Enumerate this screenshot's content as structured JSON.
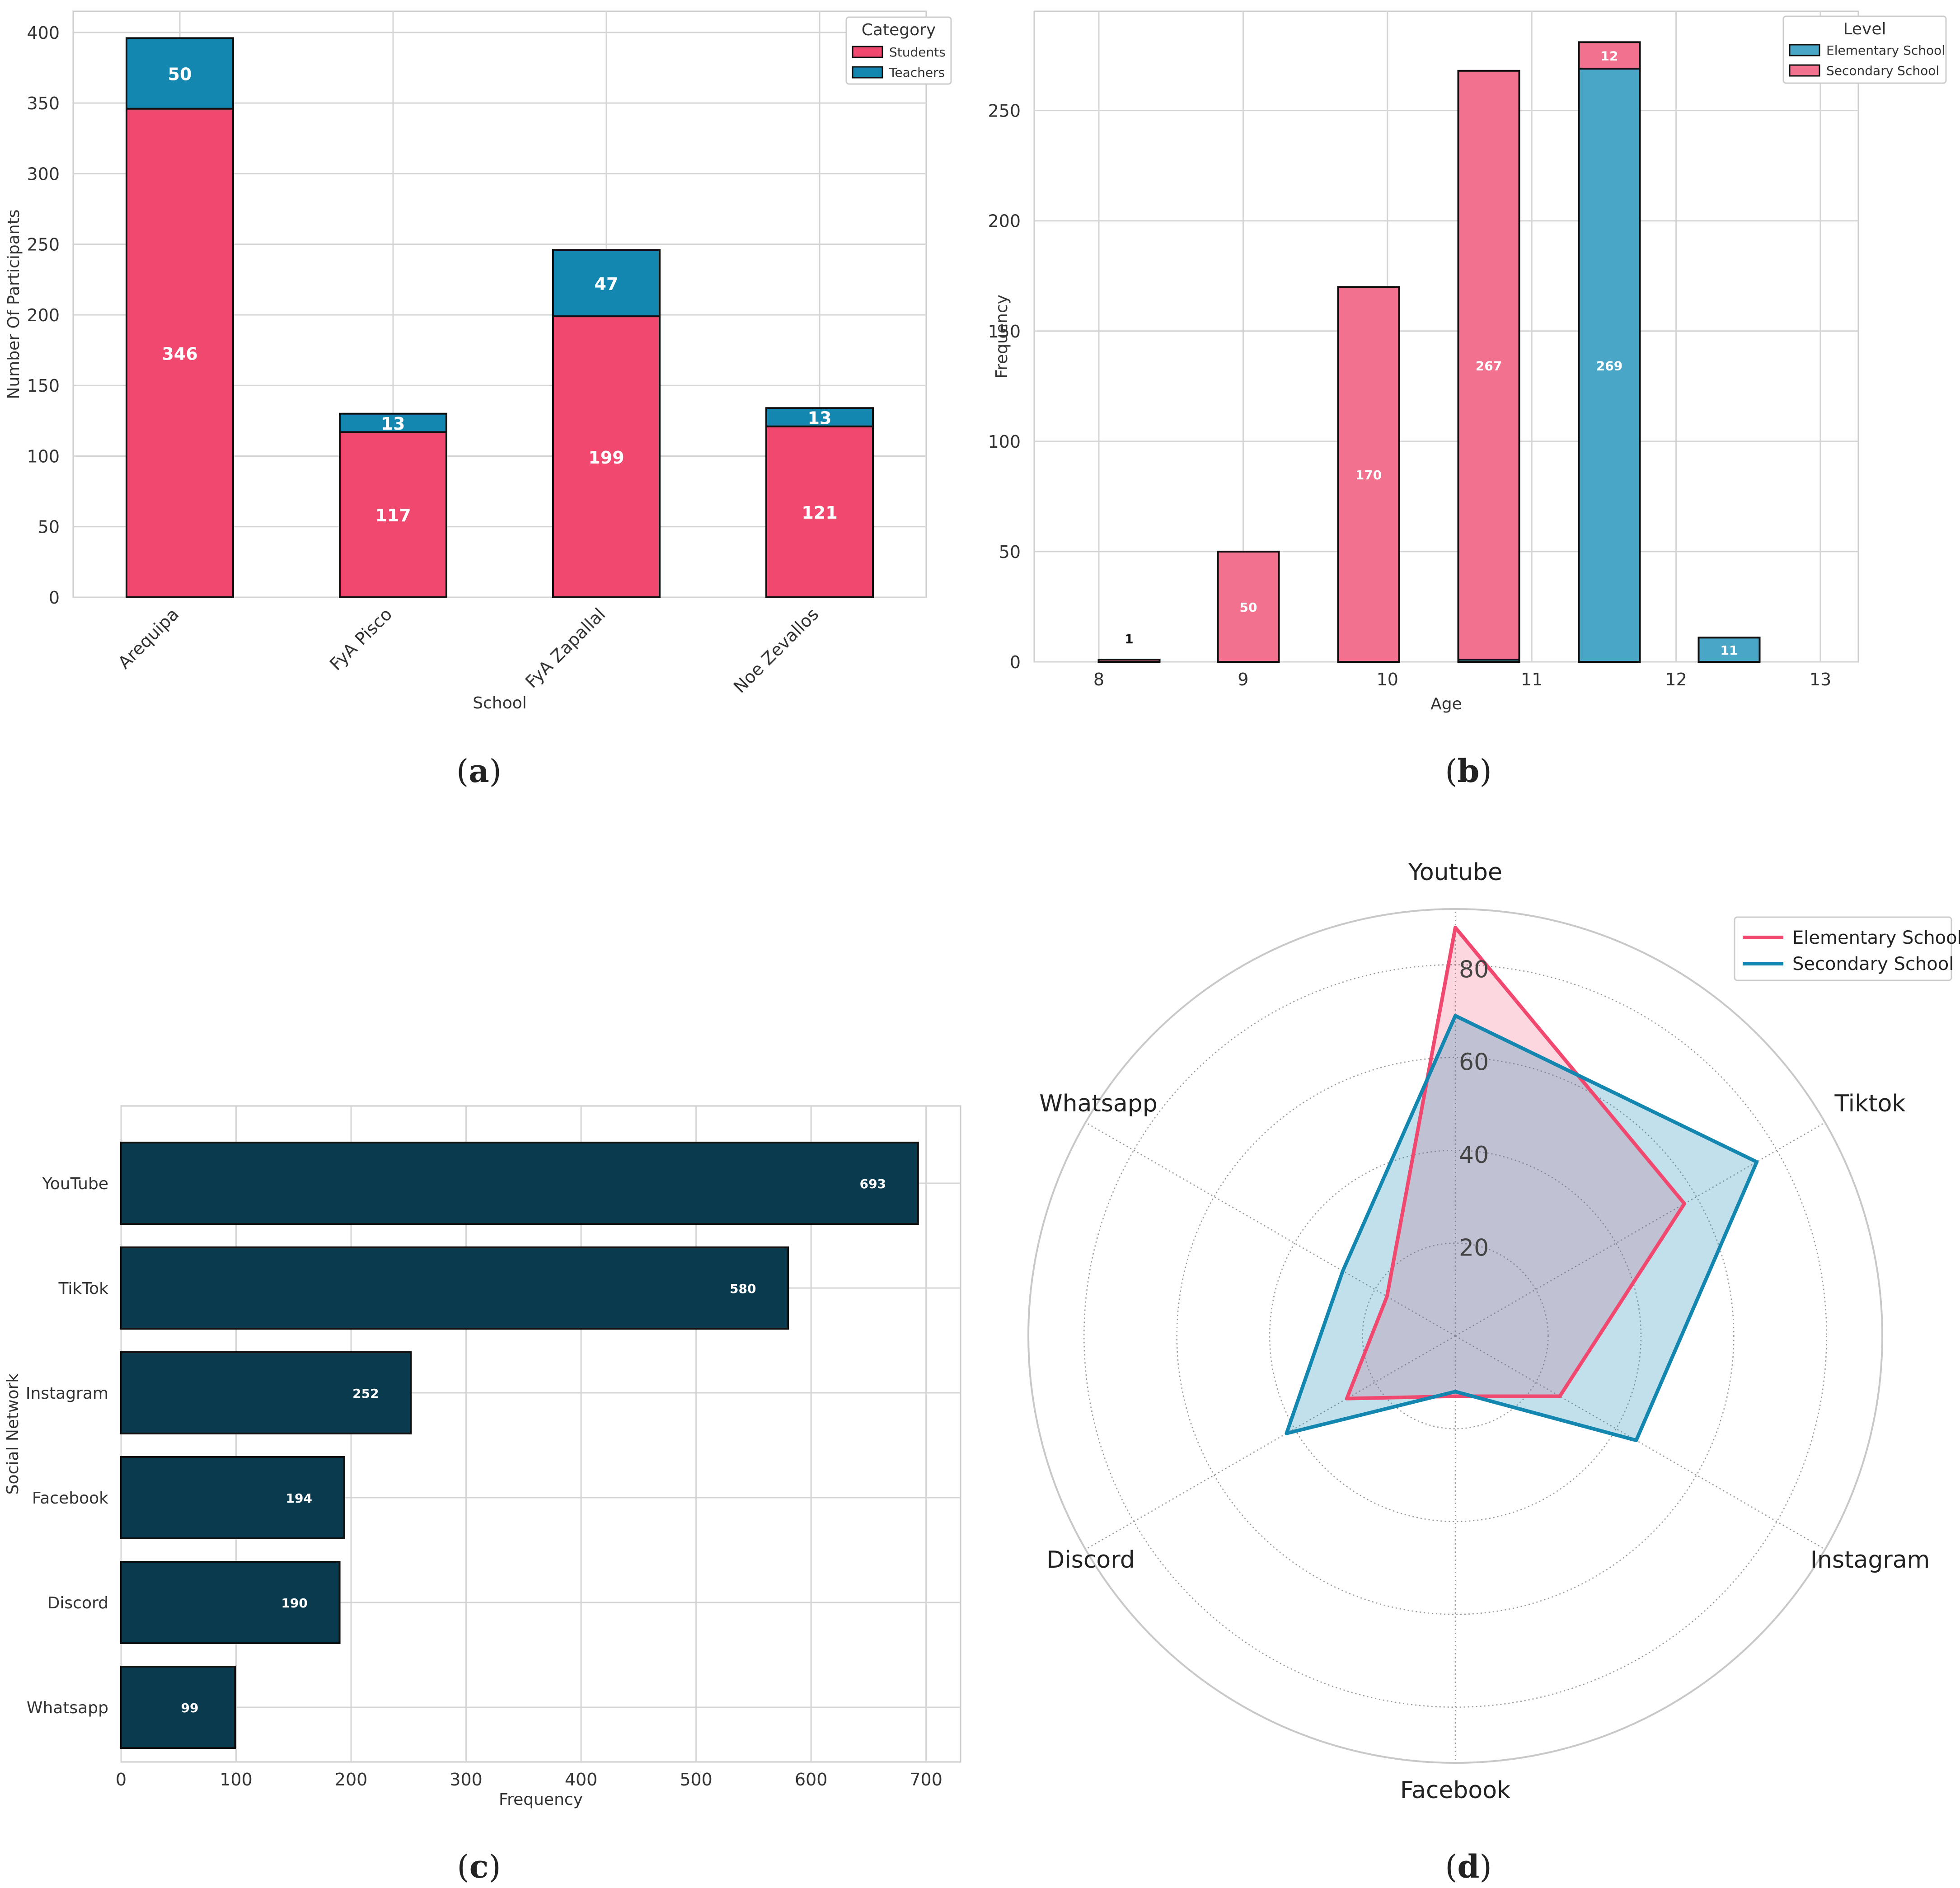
{
  "captions": {
    "a": {
      "open": "(",
      "letter": "a",
      "close": ")"
    },
    "b": {
      "open": "(",
      "letter": "b",
      "close": ")"
    },
    "c": {
      "open": "(",
      "letter": "c",
      "close": ")"
    },
    "d": {
      "open": "(",
      "letter": "d",
      "close": ")"
    }
  },
  "colors": {
    "pink": "#f0486f",
    "blue": "#1387b0",
    "pink_hist": "#f2718f",
    "blue_hist": "#4aa6c7",
    "navy": "#0a3a4e"
  },
  "chart_data": [
    {
      "id": "a",
      "type": "bar",
      "stacked": true,
      "categories": [
        "Arequipa",
        "FyA Pisco",
        "FyA Zapallal",
        "Noe Zevallos"
      ],
      "series": [
        {
          "name": "Students",
          "values": [
            346,
            117,
            199,
            121
          ]
        },
        {
          "name": "Teachers",
          "values": [
            50,
            13,
            47,
            13
          ]
        }
      ],
      "xlabel": "School",
      "ylabel": "Number Of Participants",
      "ylim": [
        0,
        415
      ],
      "yticks": [
        0,
        50,
        100,
        150,
        200,
        250,
        300,
        350,
        400
      ],
      "legend_title": "Category",
      "legend": "top-right",
      "grid": true
    },
    {
      "id": "b",
      "type": "bar",
      "subtype": "histogram",
      "stacked": true,
      "bins": [
        8,
        9,
        10,
        11,
        12,
        13
      ],
      "series": [
        {
          "name": "Elementary School",
          "values": [
            0,
            0,
            0,
            1,
            269,
            11
          ]
        },
        {
          "name": "Secondary School",
          "values": [
            1,
            50,
            170,
            267,
            12,
            0
          ]
        }
      ],
      "labels": [
        "1",
        "50",
        "170",
        "267",
        "269",
        "12",
        "1",
        "11"
      ],
      "xlabel": "Age",
      "ylabel": "Frequency",
      "ylim": [
        0,
        295
      ],
      "yticks": [
        0,
        50,
        100,
        150,
        200,
        250
      ],
      "xticks": [
        8,
        9,
        10,
        11,
        12,
        13
      ],
      "legend_title": "Level",
      "legend": "top-right",
      "grid": true
    },
    {
      "id": "c",
      "type": "bar",
      "orientation": "horizontal",
      "categories": [
        "YouTube",
        "TikTok",
        "Instagram",
        "Facebook",
        "Discord",
        "Whatsapp"
      ],
      "values": [
        693,
        580,
        252,
        194,
        190,
        99
      ],
      "xlabel": "Frequency",
      "ylabel": "Social Network",
      "xlim": [
        0,
        730
      ],
      "xticks": [
        0,
        100,
        200,
        300,
        400,
        500,
        600,
        700
      ],
      "grid": true
    },
    {
      "id": "d",
      "type": "radar",
      "axes": [
        "Youtube",
        "Tiktok",
        "Instagram",
        "Facebook",
        "Discord",
        "Whatsapp"
      ],
      "series": [
        {
          "name": "Elementary School",
          "values": [
            88,
            57,
            26,
            13,
            27,
            17
          ]
        },
        {
          "name": "Secondary School",
          "values": [
            69,
            75,
            45,
            12,
            42,
            28
          ]
        }
      ],
      "rticks": [
        20,
        40,
        60,
        80
      ],
      "rmax": 92,
      "legend": "top-right"
    }
  ]
}
